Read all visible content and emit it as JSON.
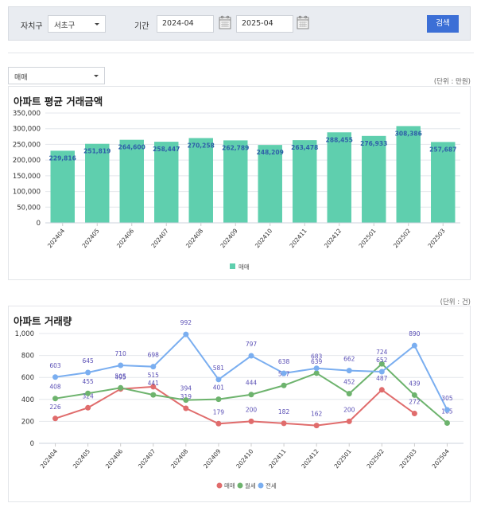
{
  "filters": {
    "district_label": "자치구",
    "district_value": "서초구",
    "period_label": "기간",
    "start_date": "2024-04",
    "end_date": "2025-04",
    "search_label": "검색"
  },
  "type_select": {
    "value": "매매"
  },
  "bar_panel": {
    "unit_label": "(단위 : 만원)",
    "title": "아파트 평균 거래금액",
    "legend": "매매"
  },
  "line_panel": {
    "unit_label": "(단위 : 건)",
    "title": "아파트 거래량",
    "legend": [
      "매매",
      "월세",
      "전세"
    ]
  },
  "colors": {
    "bar": "#5fcfae",
    "bar_label": "#2f5fa8",
    "sale": "#e06c6c",
    "monthly": "#6db36d",
    "jeonse": "#7aaef0",
    "line_label": "#5a4fb5",
    "button": "#3c6fd6"
  },
  "chart_data": [
    {
      "type": "bar",
      "title": "아파트 평균 거래금액",
      "xlabel": "",
      "ylabel": "",
      "unit": "만원",
      "ylim": [
        0,
        350000
      ],
      "yticks": [
        0,
        50000,
        100000,
        150000,
        200000,
        250000,
        300000,
        350000
      ],
      "ytick_labels": [
        "0",
        "50,000",
        "100,000",
        "150,000",
        "200,000",
        "250,000",
        "300,000",
        "350,000"
      ],
      "categories": [
        "202404",
        "202405",
        "202406",
        "202407",
        "202408",
        "202409",
        "202410",
        "202411",
        "202412",
        "202501",
        "202502",
        "202503"
      ],
      "series": [
        {
          "name": "매매",
          "values": [
            229816,
            251819,
            264600,
            258447,
            270258,
            262789,
            248209,
            263478,
            288455,
            276933,
            308386,
            257687
          ]
        }
      ],
      "value_labels": [
        "229,816",
        "251,819",
        "264,600",
        "258,447",
        "270,258",
        "262,789",
        "248,209",
        "263,478",
        "288,455",
        "276,933",
        "308,386",
        "257,687"
      ],
      "legend_position": "bottom",
      "grid": true
    },
    {
      "type": "line",
      "title": "아파트 거래량",
      "xlabel": "",
      "ylabel": "",
      "unit": "건",
      "ylim": [
        0,
        1000
      ],
      "yticks": [
        0,
        200,
        400,
        600,
        800,
        1000
      ],
      "ytick_labels": [
        "0",
        "200",
        "400",
        "600",
        "800",
        "1,000"
      ],
      "categories": [
        "202404",
        "202405",
        "202406",
        "202407",
        "202408",
        "202409",
        "202410",
        "202411",
        "202412",
        "202501",
        "202502",
        "202503",
        "202504"
      ],
      "series": [
        {
          "name": "매매",
          "values": [
            226,
            324,
            495,
            515,
            319,
            179,
            200,
            182,
            162,
            200,
            487,
            272,
            null
          ]
        },
        {
          "name": "월세",
          "values": [
            408,
            455,
            505,
            441,
            394,
            401,
            444,
            527,
            639,
            452,
            724,
            439,
            185
          ]
        },
        {
          "name": "전세",
          "values": [
            603,
            645,
            710,
            698,
            992,
            581,
            797,
            638,
            683,
            662,
            652,
            890,
            305
          ]
        }
      ],
      "legend_position": "bottom",
      "grid": true
    }
  ]
}
